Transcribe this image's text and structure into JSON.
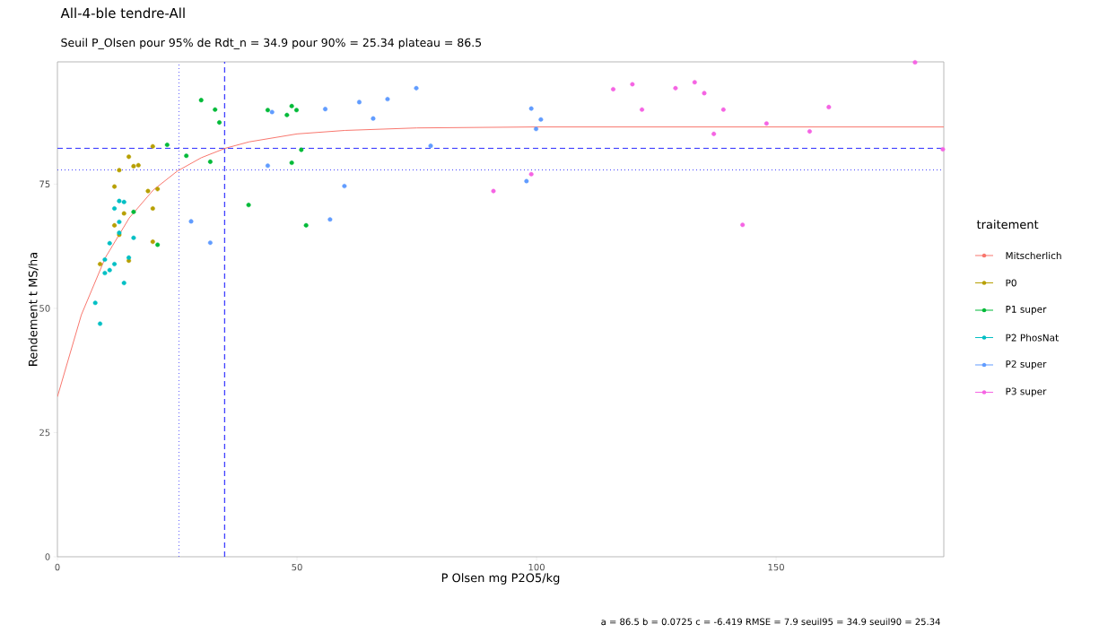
{
  "chart_data": {
    "type": "scatter",
    "title": "All-4-ble tendre-All",
    "subtitle": "Seuil P_Olsen pour 95% de Rdt_n = 34.9 pour 90% = 25.34 plateau = 86.5",
    "xlabel": "P Olsen mg P2O5/kg",
    "ylabel": "Rendement t MS/ha",
    "legend_title": "traitement",
    "legend": "right",
    "marker": "circle",
    "grid": false,
    "xlim": [
      0,
      185
    ],
    "ylim": [
      0,
      99.6
    ],
    "xticks": [
      0,
      50,
      100,
      150
    ],
    "yticks": [
      0,
      25,
      50,
      75
    ],
    "annotations": [
      "a = 86.5   b = 0.0725   c = -6.419   RMSE = 7.9   seuil95 = 34.9   seuil90 = 25.34"
    ],
    "ref_lines": [
      {
        "axis": "x",
        "value": 25.34,
        "color": "#4040ff",
        "line_style": "dotted"
      },
      {
        "axis": "x",
        "value": 34.9,
        "color": "#4040ff",
        "line_style": "dashed"
      },
      {
        "axis": "y",
        "value": 82.2,
        "color": "#4040ff",
        "line_style": "dashed"
      },
      {
        "axis": "y",
        "value": 77.85,
        "color": "#4040ff",
        "line_style": "dotted"
      }
    ],
    "series": [
      {
        "name": "Mitscherlich",
        "type": "line",
        "marker": "none",
        "color": "#F8766D",
        "x": [
          0,
          5,
          10,
          15,
          20,
          25,
          30,
          35,
          40,
          50,
          60,
          75,
          100,
          185
        ],
        "values": [
          32.2,
          48.7,
          60.2,
          68.2,
          73.8,
          77.6,
          80.3,
          82.2,
          83.5,
          85.1,
          85.8,
          86.3,
          86.5,
          86.5
        ]
      },
      {
        "name": "P0",
        "color": "#B79F00",
        "x": [
          19.9,
          14.9,
          15.9,
          16.9,
          12.9,
          11.9,
          18.9,
          20.9,
          13.9,
          19.9,
          11.9,
          12.9,
          19.9,
          8.9,
          14.9
        ],
        "values": [
          82.6,
          80.5,
          78.6,
          78.8,
          77.8,
          74.5,
          73.6,
          74.0,
          69.1,
          70.1,
          66.7,
          64.8,
          63.4,
          58.9,
          59.6
        ]
      },
      {
        "name": "P1 super",
        "color": "#00BA38",
        "x": [
          30.0,
          32.9,
          33.8,
          22.9,
          26.9,
          31.9,
          15.9,
          20.9,
          39.9,
          43.9,
          47.9,
          48.9,
          49.9,
          50.9,
          48.9,
          51.9
        ],
        "values": [
          91.9,
          90.0,
          87.4,
          82.9,
          80.7,
          79.5,
          69.4,
          62.8,
          70.8,
          89.9,
          88.9,
          90.7,
          89.9,
          81.9,
          79.3,
          66.7
        ]
      },
      {
        "name": "P2 PhosNat",
        "color": "#00BFC4",
        "x": [
          12.9,
          13.9,
          11.9,
          12.9,
          12.9,
          15.9,
          10.9,
          14.9,
          9.9,
          11.9,
          10.9,
          9.9,
          13.9,
          7.9,
          8.9
        ],
        "values": [
          71.6,
          71.4,
          70.1,
          67.4,
          65.2,
          64.2,
          63.1,
          60.2,
          59.8,
          58.9,
          57.7,
          57.1,
          55.1,
          51.1,
          46.9
        ]
      },
      {
        "name": "P2 super",
        "color": "#619CFF",
        "x": [
          44.8,
          43.9,
          27.9,
          31.9,
          55.9,
          63.0,
          65.9,
          68.9,
          74.9,
          77.9,
          59.9,
          56.9,
          98.9,
          100.9,
          99.9,
          97.9
        ],
        "values": [
          89.5,
          78.7,
          67.5,
          63.2,
          90.1,
          91.5,
          88.2,
          92.1,
          94.3,
          82.7,
          74.6,
          67.9,
          90.2,
          88.0,
          86.1,
          75.6
        ]
      },
      {
        "name": "P3 super",
        "color": "#F564E3",
        "x": [
          91.0,
          98.9,
          116.0,
          120.0,
          122.0,
          129.0,
          133.0,
          135.0,
          139.0,
          137.0,
          143.0,
          148.0,
          157.0,
          161.0,
          179.0,
          184.8
        ],
        "values": [
          73.6,
          77.0,
          94.1,
          95.1,
          90.0,
          94.3,
          95.5,
          93.3,
          90.0,
          85.1,
          66.8,
          87.2,
          85.6,
          90.5,
          99.5,
          82.0
        ]
      }
    ]
  }
}
